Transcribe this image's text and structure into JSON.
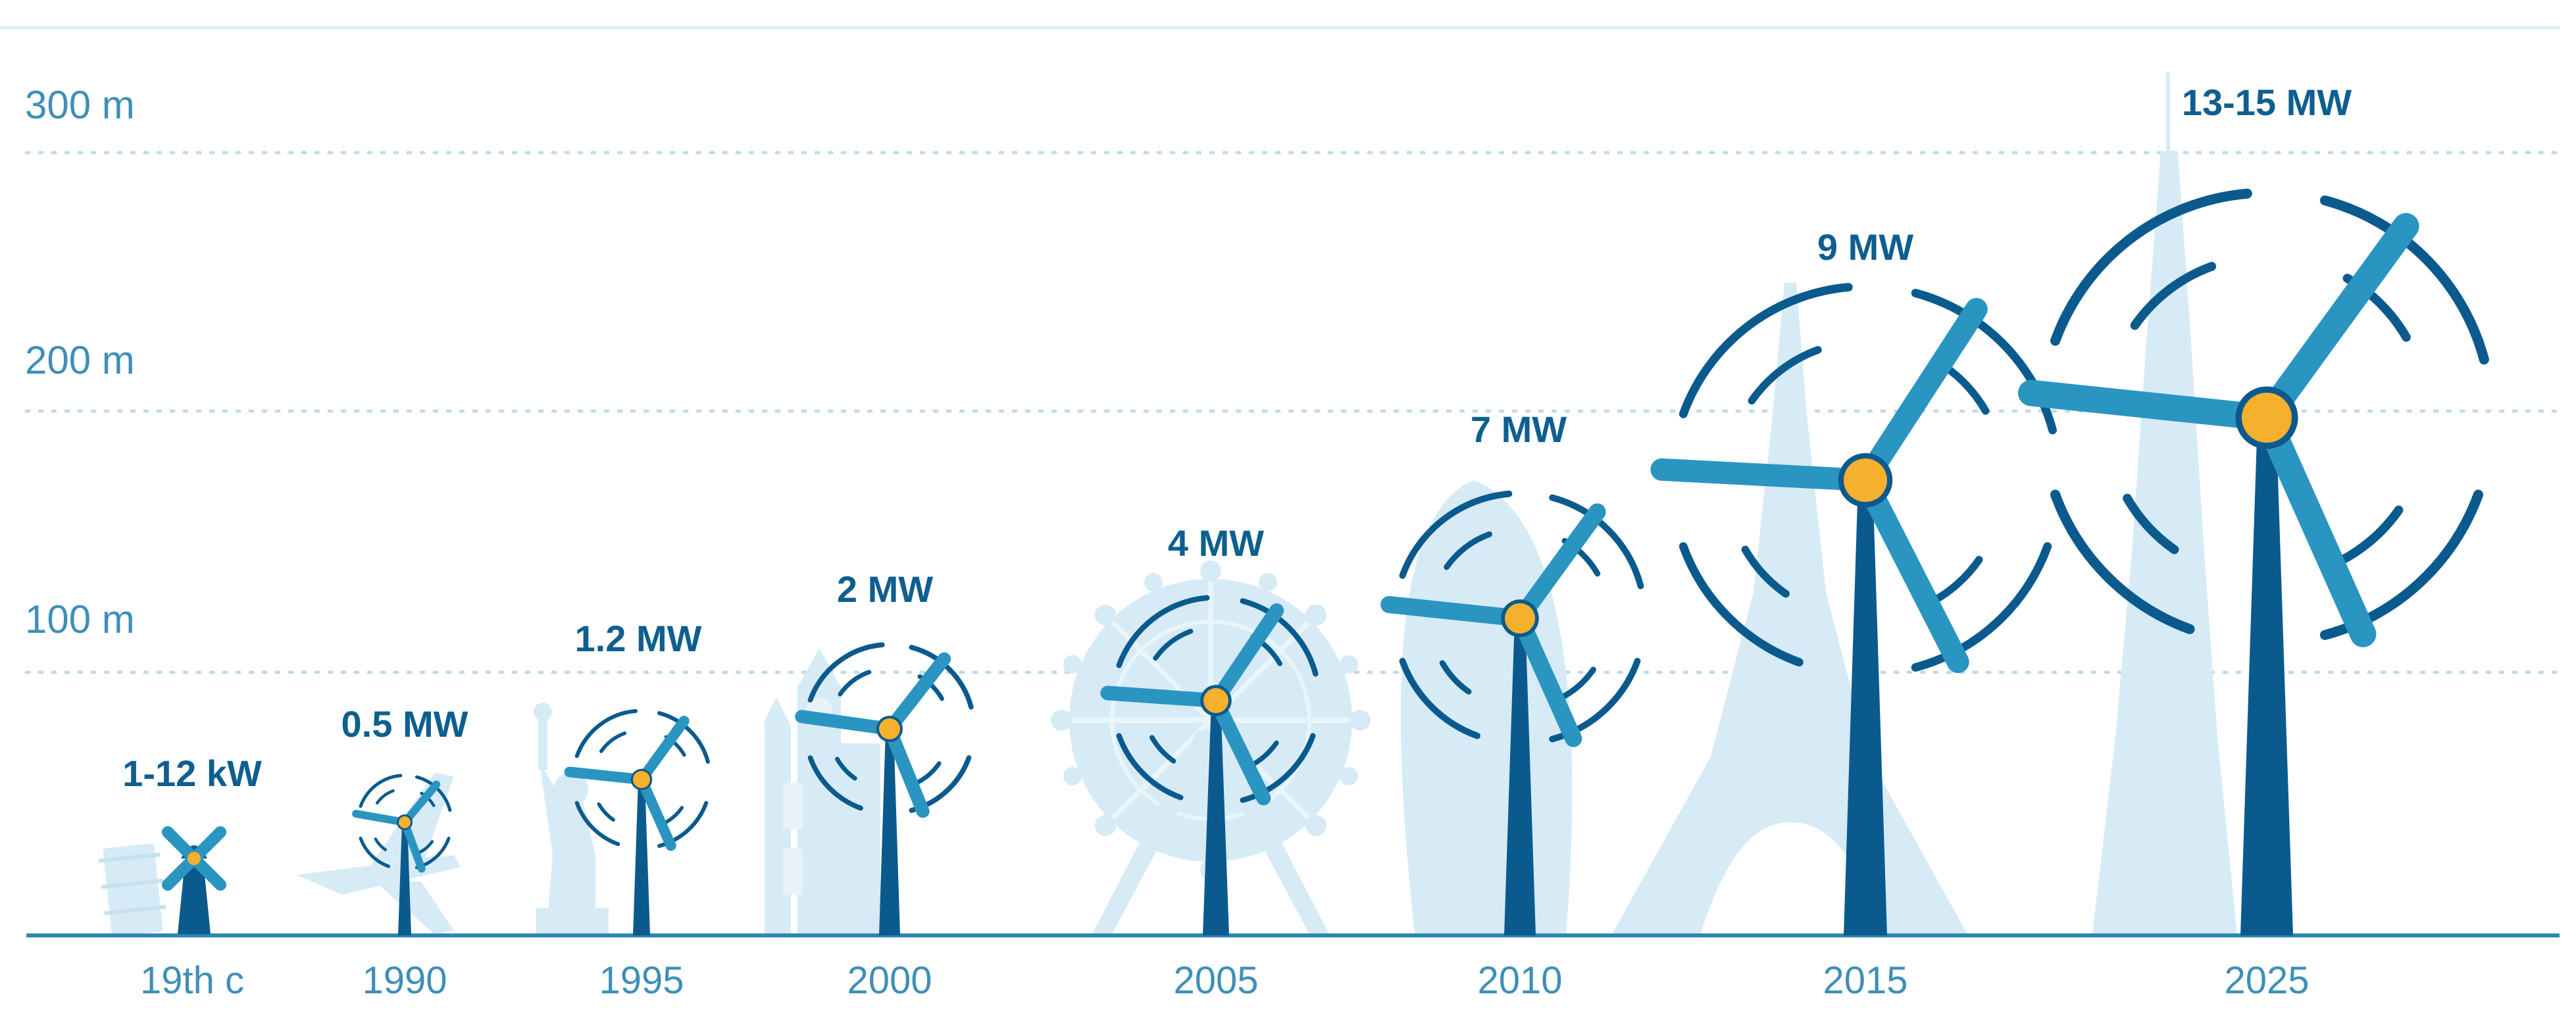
{
  "y_axis": {
    "labels": [
      "300 m",
      "200 m",
      "100 m"
    ]
  },
  "turbines": [
    {
      "year": "19th c",
      "power": "1-12 kW",
      "kind": "windmill",
      "landmark": "leaning-tower"
    },
    {
      "year": "1990",
      "power": "0.5 MW",
      "kind": "turbine",
      "landmark": "airplane"
    },
    {
      "year": "1995",
      "power": "1.2 MW",
      "kind": "turbine",
      "landmark": "statue-of-liberty"
    },
    {
      "year": "2000",
      "power": "2 MW",
      "kind": "turbine",
      "landmark": "big-ben"
    },
    {
      "year": "2005",
      "power": "4 MW",
      "kind": "turbine",
      "landmark": "london-eye"
    },
    {
      "year": "2010",
      "power": "7 MW",
      "kind": "turbine",
      "landmark": "gherkin"
    },
    {
      "year": "2015",
      "power": "9 MW",
      "kind": "turbine",
      "landmark": "eiffel-tower"
    },
    {
      "year": "2025",
      "power": "13-15 MW",
      "kind": "turbine",
      "landmark": "burj-khalifa"
    }
  ],
  "colors": {
    "tower": "#0b5a8e",
    "blade": "#2b95c2",
    "hub": "#f5b02e",
    "arc": "#0b5a8e",
    "landmark": "#d6ebf5",
    "axis_text": "#3f8fb7",
    "caption": "#0e5f8f",
    "gridline": "#bfdcea",
    "ground": "#2b86b3"
  }
}
